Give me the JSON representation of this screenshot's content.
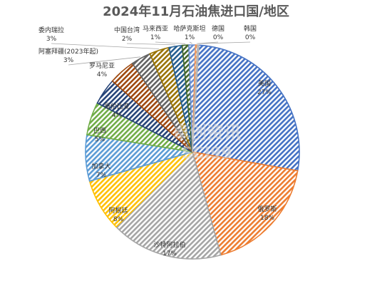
{
  "chart_data": {
    "type": "pie",
    "title": "2024年11月石油焦进口国/地区",
    "slices": [
      {
        "name": "美国",
        "pct_label": "27%",
        "value": 27,
        "color": "#4472c4"
      },
      {
        "name": "俄罗斯",
        "pct_label": "18%",
        "value": 18,
        "color": "#ed7d31"
      },
      {
        "name": "沙特阿拉伯",
        "pct_label": "17%",
        "value": 17,
        "color": "#a5a5a5"
      },
      {
        "name": "阿根廷",
        "pct_label": "8%",
        "value": 8,
        "color": "#ffc000"
      },
      {
        "name": "加拿大",
        "pct_label": "7%",
        "value": 7,
        "color": "#5b9bd5"
      },
      {
        "name": "巴西",
        "pct_label": "5%",
        "value": 5,
        "color": "#70ad47"
      },
      {
        "name": "哥伦比亚",
        "pct_label": "4%",
        "value": 4,
        "color": "#264478"
      },
      {
        "name": "罗马尼亚",
        "pct_label": "4%",
        "value": 4,
        "color": "#9e480e"
      },
      {
        "name": "阿塞拜疆(2023年起)",
        "pct_label": "3%",
        "value": 3,
        "color": "#636363"
      },
      {
        "name": "委内瑞拉",
        "pct_label": "3%",
        "value": 3,
        "color": "#997300"
      },
      {
        "name": "中国台湾",
        "pct_label": "2%",
        "value": 2,
        "color": "#255e91"
      },
      {
        "name": "马来西亚",
        "pct_label": "1%",
        "value": 1,
        "color": "#43682b"
      },
      {
        "name": "哈萨克斯坦",
        "pct_label": "1%",
        "value": 1,
        "color": "#698ed0"
      },
      {
        "name": "德国",
        "pct_label": "0%",
        "value": 0.3,
        "color": "#f1975a"
      },
      {
        "name": "韩国",
        "pct_label": "0%",
        "value": 0.2,
        "color": "#b7b7b7"
      }
    ]
  },
  "watermark": {
    "text_cn": "卓创资讯",
    "text_en": "SCI99"
  }
}
